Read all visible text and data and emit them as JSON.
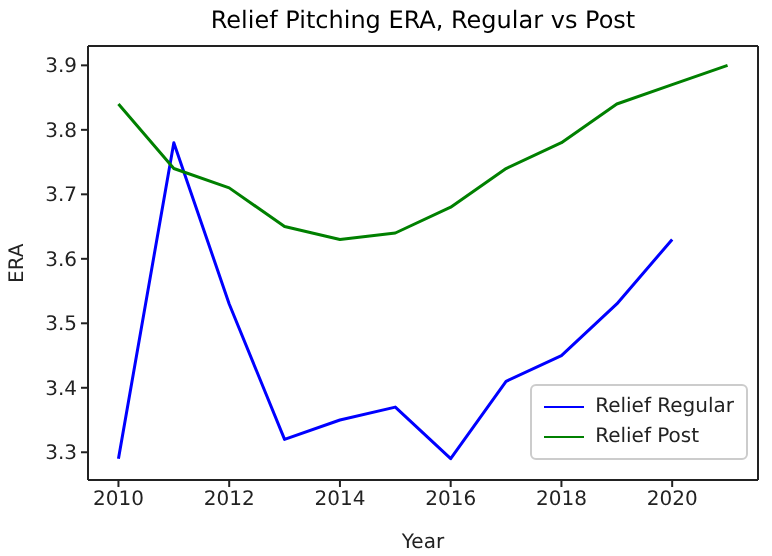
{
  "chart_data": {
    "type": "line",
    "title": "Relief Pitching ERA, Regular vs Post",
    "xlabel": "Year",
    "ylabel": "ERA",
    "x": [
      2010,
      2011,
      2012,
      2013,
      2014,
      2015,
      2016,
      2017,
      2018,
      2019,
      2020,
      2021
    ],
    "series": [
      {
        "name": "Relief Regular",
        "color": "#0000ff",
        "values": [
          3.29,
          3.78,
          3.53,
          3.32,
          3.35,
          3.37,
          3.29,
          3.41,
          3.45,
          3.53,
          3.63,
          null
        ]
      },
      {
        "name": "Relief Post",
        "color": "#008000",
        "values": [
          3.84,
          3.74,
          3.71,
          3.65,
          3.63,
          3.64,
          3.68,
          3.74,
          3.78,
          3.84,
          3.87,
          3.9
        ]
      }
    ],
    "xlim": [
      2009.45,
      2021.55
    ],
    "xticks": [
      2010,
      2012,
      2014,
      2016,
      2018,
      2020
    ],
    "ylim": [
      3.257,
      3.93
    ],
    "yticks": [
      3.3,
      3.4,
      3.5,
      3.6,
      3.7,
      3.8,
      3.9
    ],
    "grid": false,
    "legend": "bottom right",
    "marker": "none",
    "line_style": "solid"
  }
}
